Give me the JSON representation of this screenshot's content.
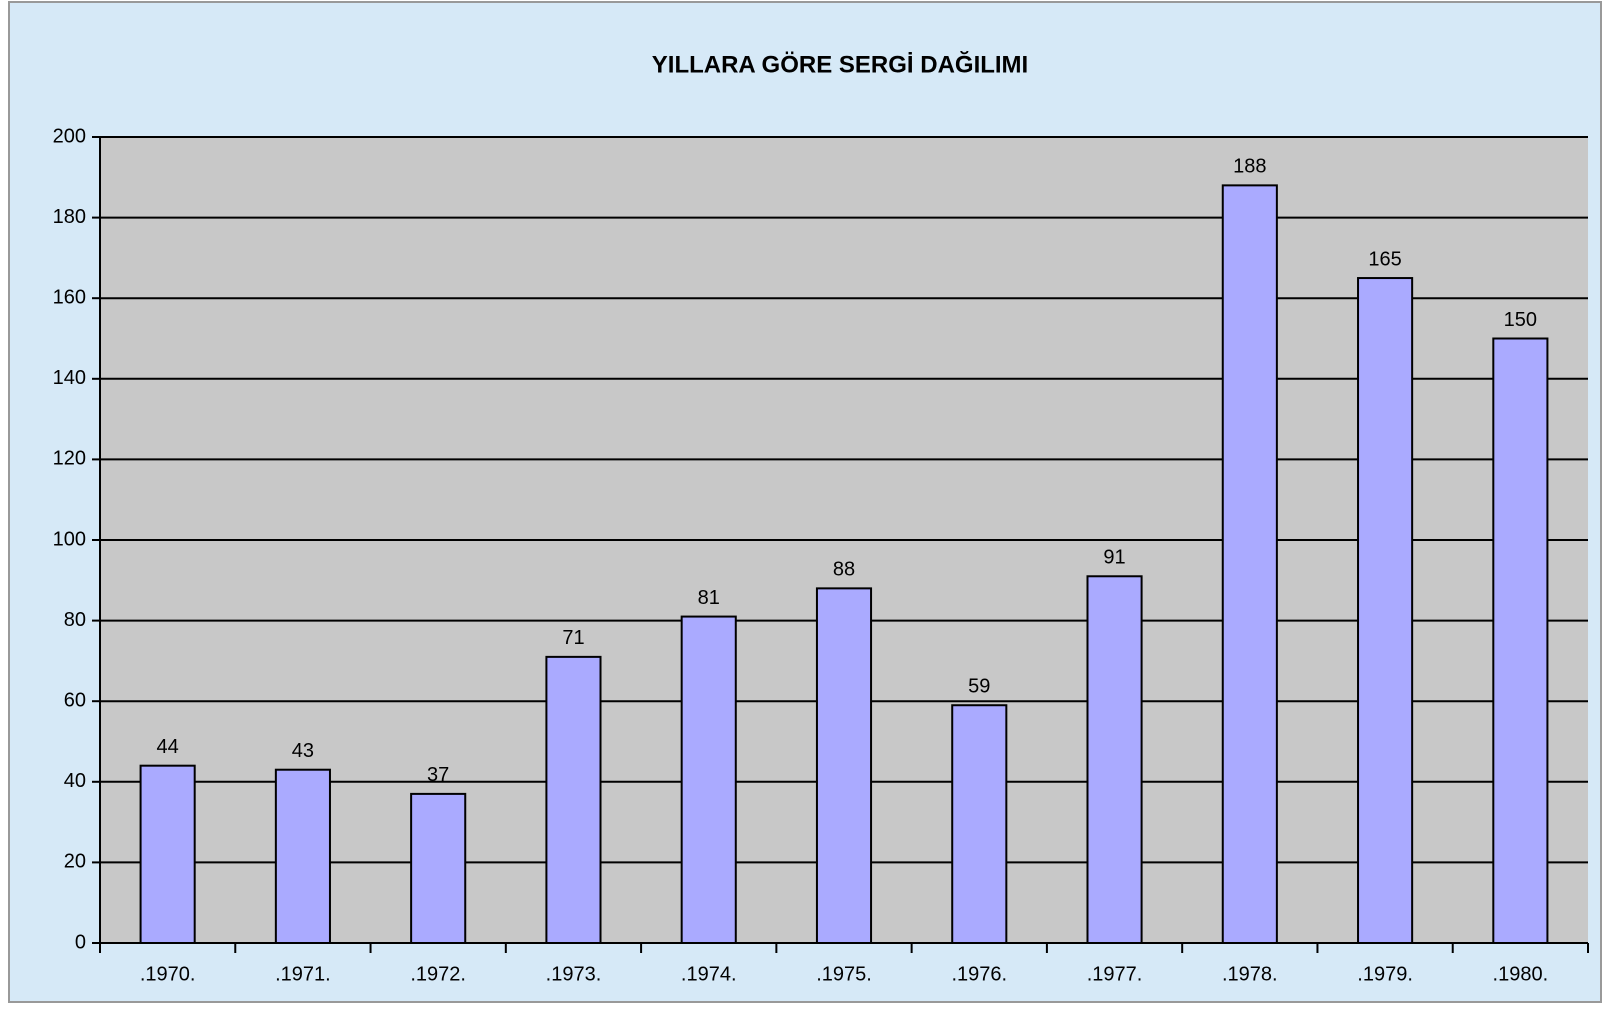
{
  "chart_data": {
    "type": "bar",
    "title": "YILLARA GÖRE SERGİ DAĞILIMI",
    "categories": [
      ".1970.",
      ".1971.",
      ".1972.",
      ".1973.",
      ".1974.",
      ".1975.",
      ".1976.",
      ".1977.",
      ".1978.",
      ".1979.",
      ".1980."
    ],
    "values": [
      44,
      43,
      37,
      71,
      81,
      88,
      59,
      91,
      188,
      165,
      150
    ],
    "color": "#aaaaff",
    "ylim": [
      0,
      200
    ],
    "yticks": [
      0,
      20,
      40,
      60,
      80,
      100,
      120,
      140,
      160,
      180,
      200
    ],
    "grid": true
  }
}
